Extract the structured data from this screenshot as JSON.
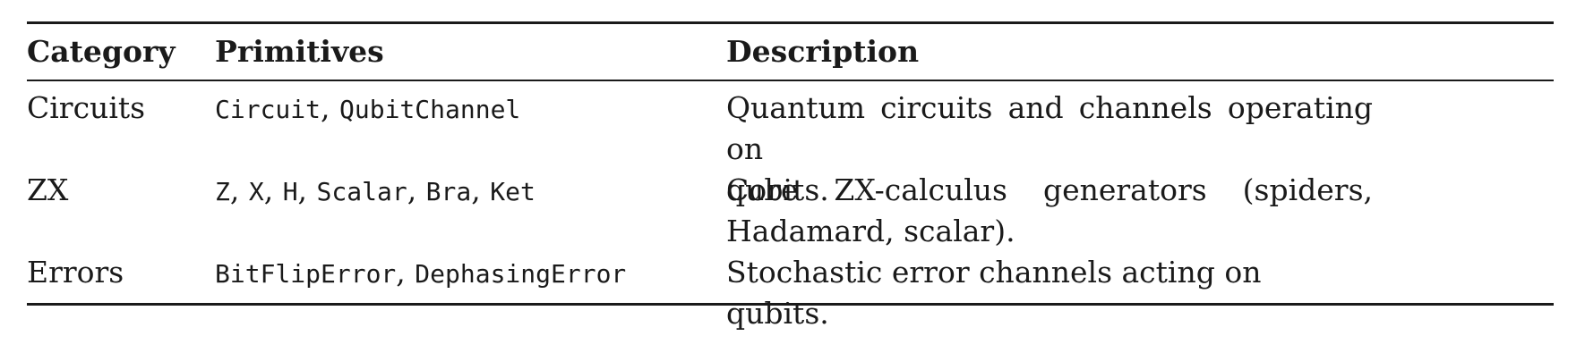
{
  "table": {
    "headers": {
      "category": "Category",
      "primitives": "Primitives",
      "description": "Description"
    },
    "rows": [
      {
        "category": "Circuits",
        "primitives": [
          "Circuit",
          "QubitChannel"
        ],
        "description_lines": [
          "Quantum circuits and channels operating on",
          "qubits."
        ]
      },
      {
        "category": "ZX",
        "primitives": [
          "Z",
          "X",
          "H",
          "Scalar",
          "Bra",
          "Ket"
        ],
        "description_lines": [
          "Core ZX-calculus generators (spiders,",
          "Hadamard, scalar)."
        ]
      },
      {
        "category": "Errors",
        "primitives": [
          "BitFlipError",
          "DephasingError"
        ],
        "description_lines": [
          "Stochastic error channels acting on qubits."
        ]
      }
    ],
    "separator": ", "
  }
}
